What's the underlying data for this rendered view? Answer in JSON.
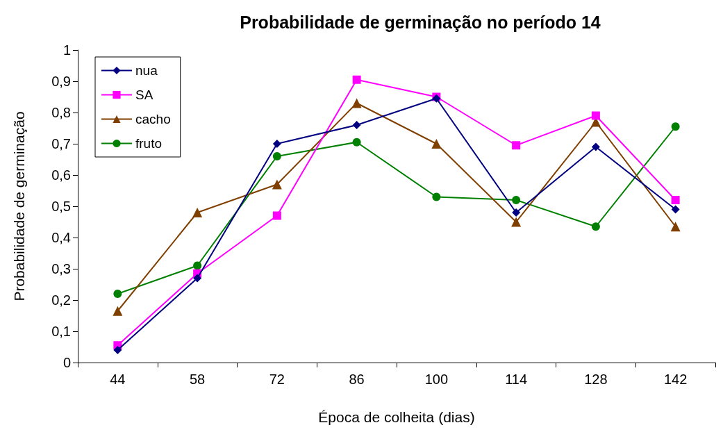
{
  "chart_data": {
    "type": "line",
    "title": "Probabilidade de germinação no período 14",
    "xlabel": "Época de colheita (dias)",
    "ylabel": "Probabilidade de germinação",
    "categories": [
      "44",
      "58",
      "72",
      "86",
      "100",
      "114",
      "128",
      "142"
    ],
    "ylim": [
      0,
      1
    ],
    "yticks": [
      0,
      {
        "value": 0.1,
        "label": "0,1"
      },
      {
        "value": 0.2,
        "label": "0,2"
      },
      {
        "value": 0.3,
        "label": "0,3"
      },
      {
        "value": 0.4,
        "label": "0,4"
      },
      {
        "value": 0.5,
        "label": "0,5"
      },
      {
        "value": 0.6,
        "label": "0,6"
      },
      {
        "value": 0.7,
        "label": "0,7"
      },
      {
        "value": 0.8,
        "label": "0,8"
      },
      {
        "value": 0.9,
        "label": "0,9"
      },
      1
    ],
    "grid": false,
    "legend": "top left",
    "line_style": "solid",
    "series": [
      {
        "name": "nua",
        "color": "#000080",
        "marker": "diamond",
        "values": [
          0.04,
          0.27,
          0.7,
          0.76,
          0.845,
          0.48,
          0.69,
          0.49
        ]
      },
      {
        "name": "SA",
        "color": "#ff00ff",
        "marker": "square",
        "values": [
          0.055,
          0.285,
          0.47,
          0.905,
          0.85,
          0.695,
          0.79,
          0.52
        ]
      },
      {
        "name": "cacho",
        "color": "#7f3f00",
        "marker": "triangle",
        "values": [
          0.165,
          0.48,
          0.57,
          0.83,
          0.7,
          0.45,
          0.77,
          0.435
        ]
      },
      {
        "name": "fruto",
        "color": "#008000",
        "marker": "circle",
        "values": [
          0.22,
          0.31,
          0.66,
          0.705,
          0.53,
          0.52,
          0.435,
          0.755
        ]
      }
    ]
  }
}
